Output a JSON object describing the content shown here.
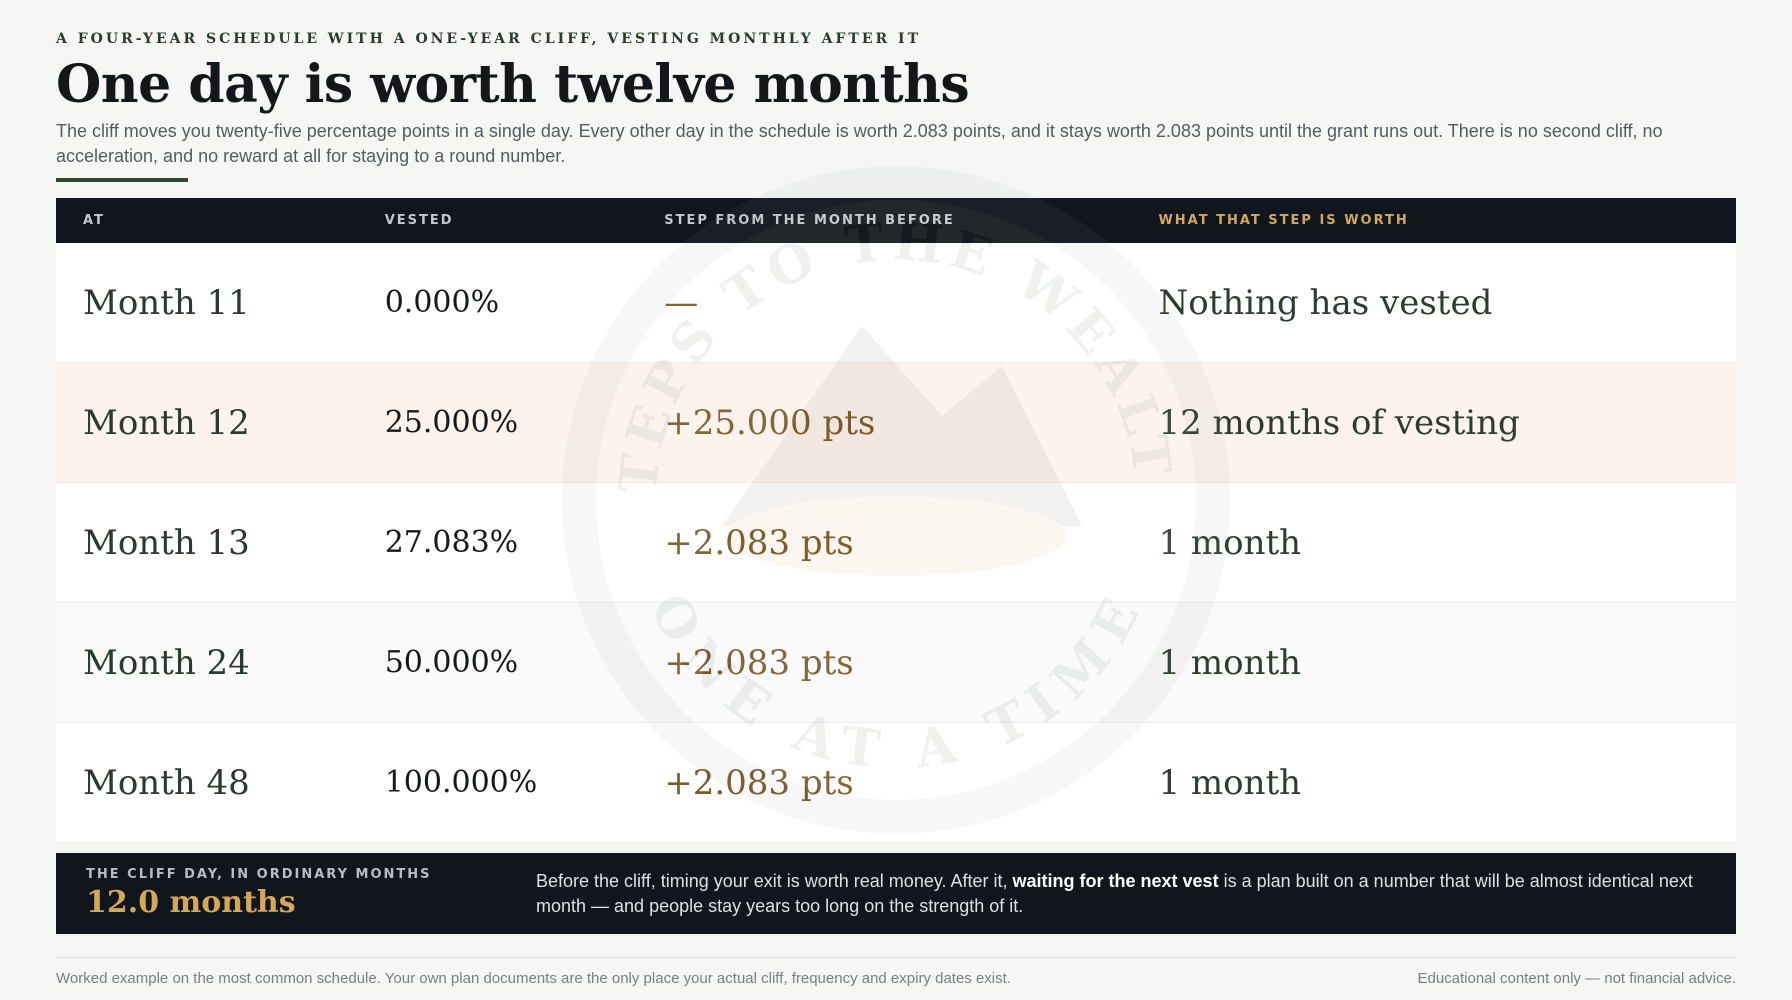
{
  "header": {
    "eyebrow": "A FOUR-YEAR SCHEDULE WITH A ONE-YEAR CLIFF, VESTING MONTHLY AFTER IT",
    "title": "One day is worth twelve months",
    "intro": "The cliff moves you twenty-five percentage points in a single day. Every other day in the schedule is worth 2.083 points, and it stays worth 2.083 points until the grant runs out. There is no second cliff, no acceleration, and no reward at all for staying to a round number."
  },
  "watermark": {
    "top": "STEPS TO THE WEALTH",
    "bottom": "ONE AT A TIME"
  },
  "table": {
    "columns": [
      "AT",
      "VESTED",
      "STEP FROM THE MONTH BEFORE",
      "WHAT THAT STEP IS WORTH"
    ],
    "rows": [
      [
        "Month 11",
        "0.000%",
        "—",
        "Nothing has vested"
      ],
      [
        "Month 12",
        "25.000%",
        "+25.000 pts",
        "12 months of vesting"
      ],
      [
        "Month 13",
        "27.083%",
        "+2.083 pts",
        "1 month"
      ],
      [
        "Month 24",
        "50.000%",
        "+2.083 pts",
        "1 month"
      ],
      [
        "Month 48",
        "100.000%",
        "+2.083 pts",
        "1 month"
      ]
    ]
  },
  "callout": {
    "label": "THE CLIFF DAY, IN ORDINARY MONTHS",
    "value": "12.0 months",
    "text_before": "Before the cliff, timing your exit is worth real money. After it, ",
    "text_bold": "waiting for the next vest",
    "text_after": " is a plan built on a number that will be almost identical next month — and people stay years too long on the strength of it."
  },
  "footer": {
    "left": "Worked example on the most common schedule. Your own plan documents are the only place your actual cliff, frequency and expiry dates exist.",
    "right": "Educational content only — not financial advice."
  }
}
